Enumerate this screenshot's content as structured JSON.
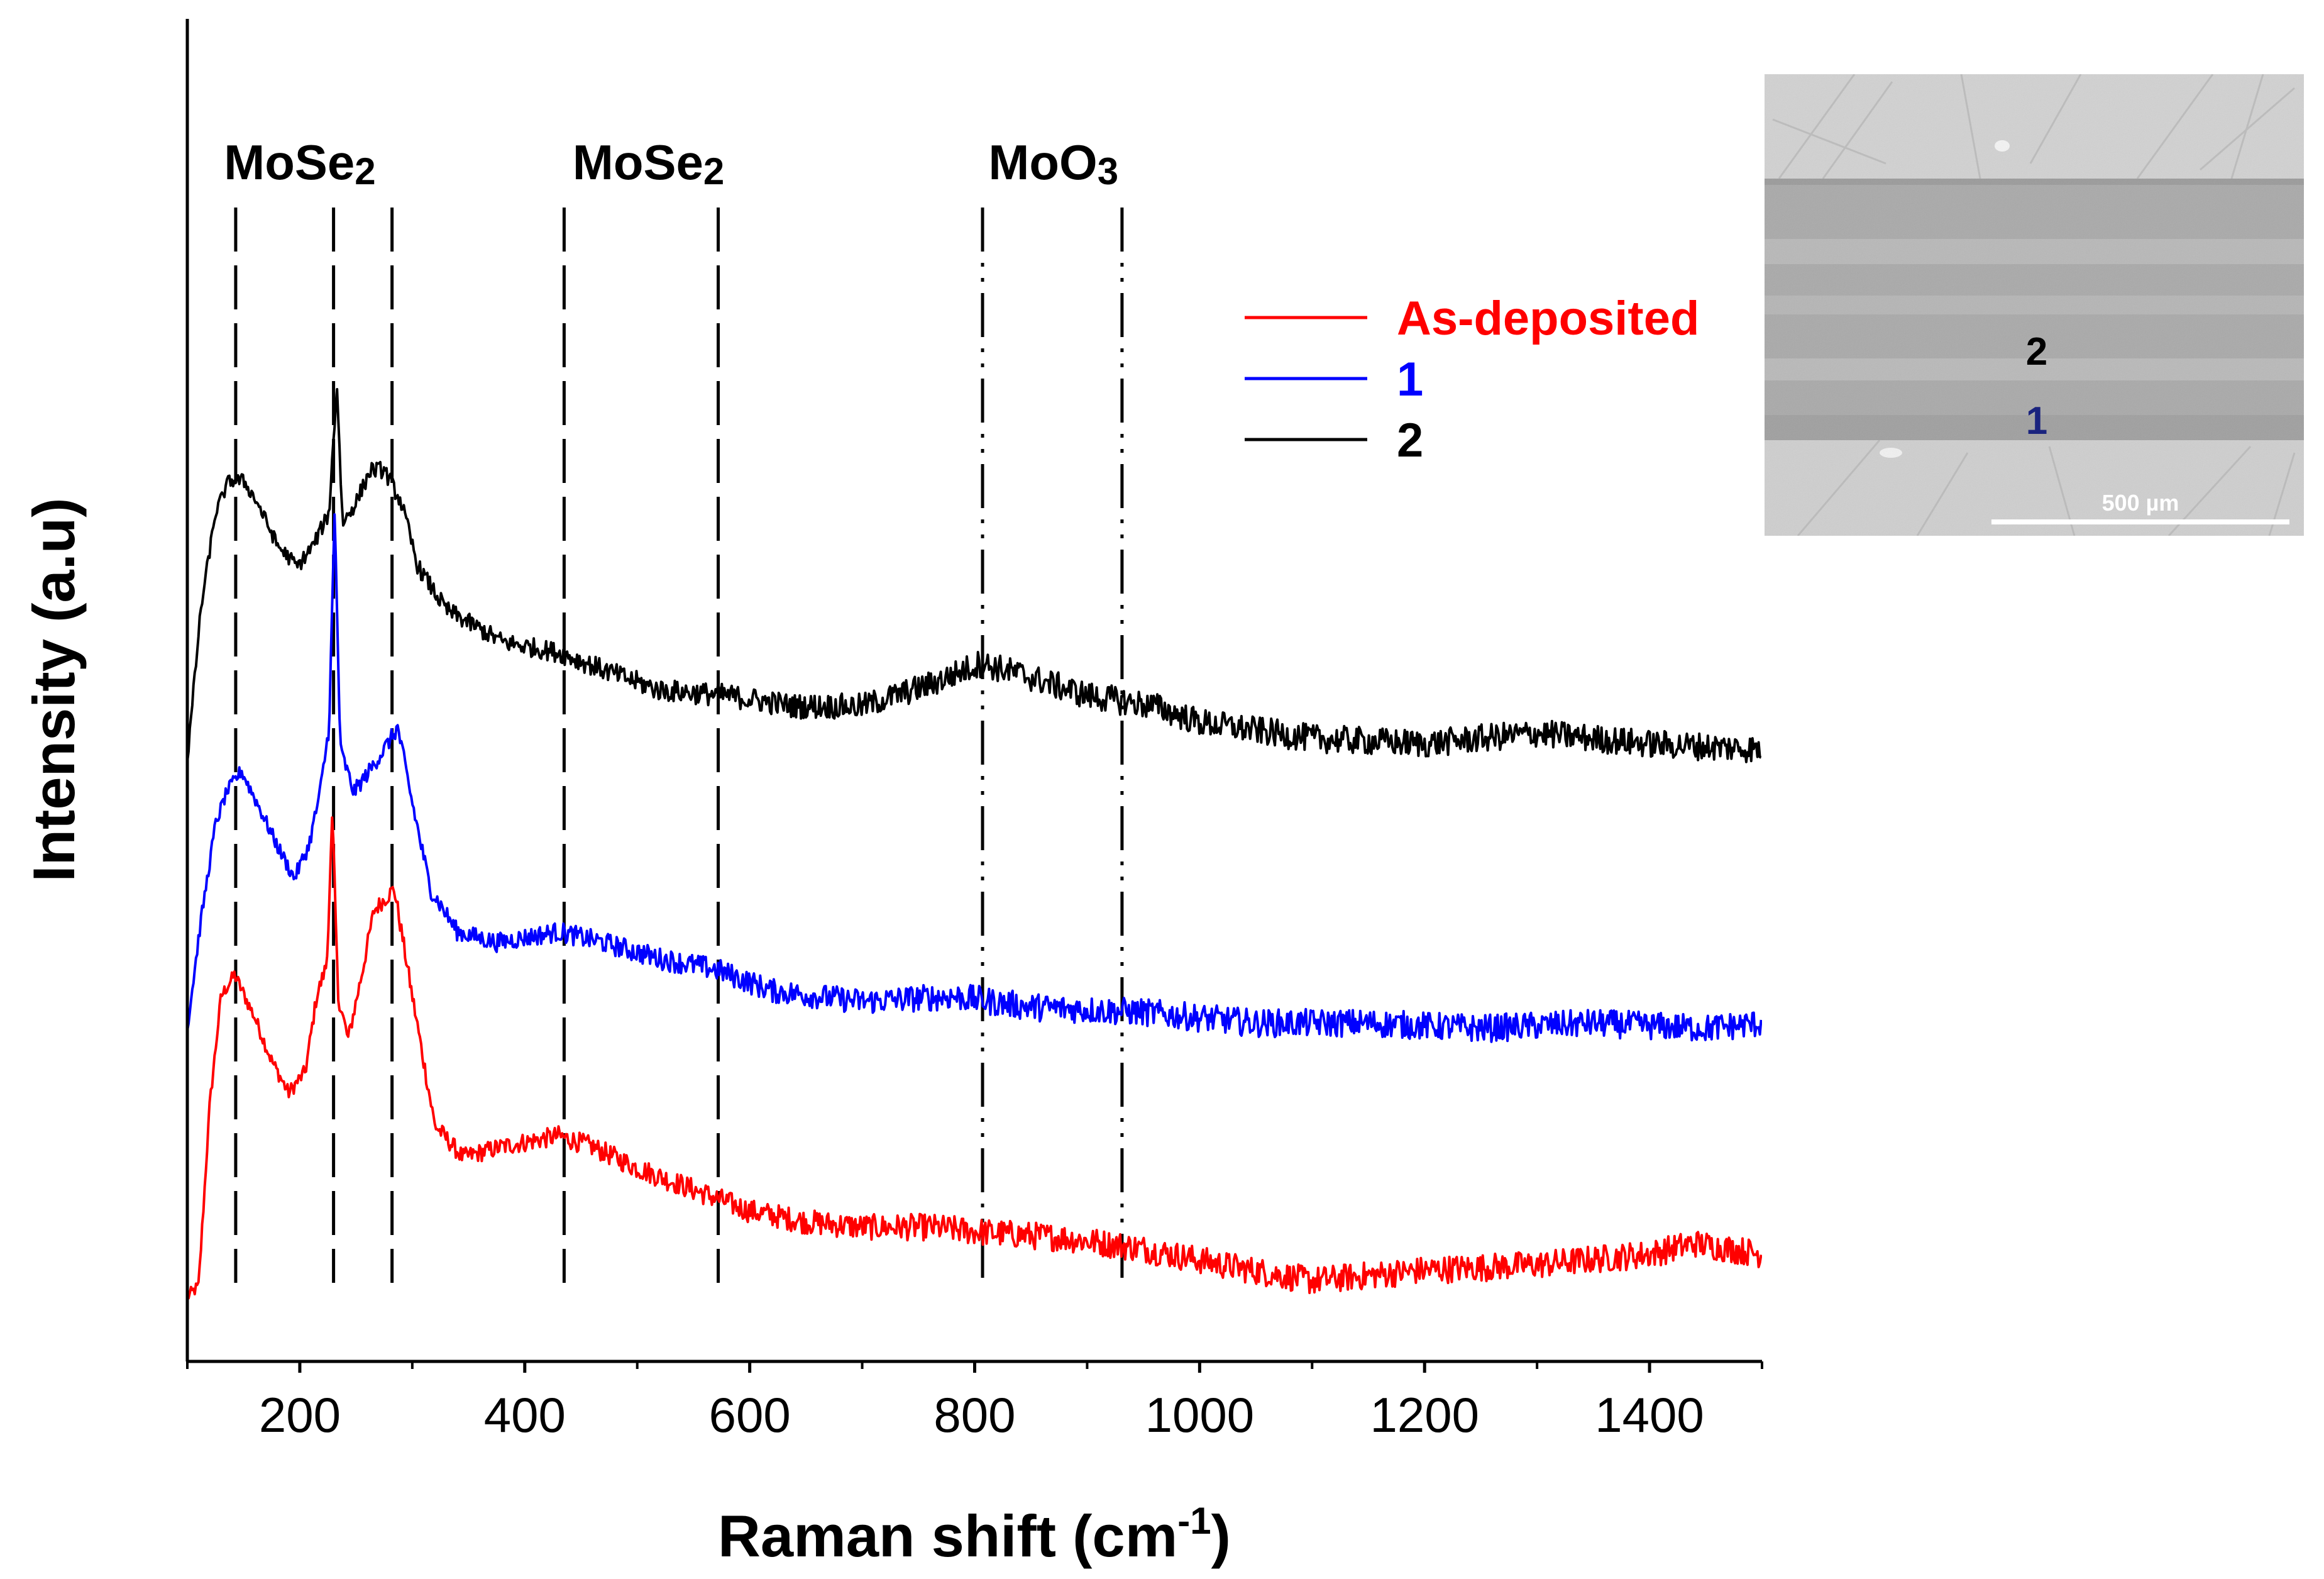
{
  "chart_data": {
    "type": "line",
    "title": "",
    "xlabel": "Raman shift (cm",
    "xlabel_sup": "-1",
    "xlabel_end": ")",
    "ylabel": "Intensity (a.u)",
    "xlim": [
      100,
      1500
    ],
    "ylim": [
      0,
      1.25
    ],
    "x_ticks": [
      200,
      400,
      600,
      800,
      1000,
      1200,
      1400
    ],
    "x_tick_labels": [
      "200",
      "400",
      "600",
      "800",
      "1000",
      "1200",
      "1400"
    ],
    "y_ticks_shown": false,
    "series": [
      {
        "name": "As-deposited",
        "color": "#ff0000",
        "offset": 0.06,
        "points": [
          [
            100,
            0.0
          ],
          [
            110,
            0.01
          ],
          [
            120,
            0.18
          ],
          [
            130,
            0.28
          ],
          [
            142,
            0.3
          ],
          [
            160,
            0.26
          ],
          [
            175,
            0.22
          ],
          [
            190,
            0.19
          ],
          [
            205,
            0.21
          ],
          [
            215,
            0.28
          ],
          [
            224,
            0.31
          ],
          [
            229,
            0.45
          ],
          [
            234,
            0.28
          ],
          [
            243,
            0.24
          ],
          [
            255,
            0.3
          ],
          [
            266,
            0.36
          ],
          [
            284,
            0.38
          ],
          [
            300,
            0.28
          ],
          [
            320,
            0.16
          ],
          [
            345,
            0.13
          ],
          [
            380,
            0.14
          ],
          [
            430,
            0.15
          ],
          [
            460,
            0.14
          ],
          [
            500,
            0.12
          ],
          [
            550,
            0.1
          ],
          [
            600,
            0.08
          ],
          [
            650,
            0.07
          ],
          [
            700,
            0.065
          ],
          [
            760,
            0.065
          ],
          [
            810,
            0.06
          ],
          [
            880,
            0.055
          ],
          [
            950,
            0.045
          ],
          [
            1020,
            0.03
          ],
          [
            1100,
            0.015
          ],
          [
            1200,
            0.025
          ],
          [
            1300,
            0.03
          ],
          [
            1400,
            0.04
          ],
          [
            1440,
            0.05
          ],
          [
            1500,
            0.04
          ]
        ]
      },
      {
        "name": "1",
        "color": "#0000ff",
        "offset": 0.31,
        "points": [
          [
            100,
            0.0
          ],
          [
            112,
            0.1
          ],
          [
            125,
            0.19
          ],
          [
            135,
            0.22
          ],
          [
            148,
            0.24
          ],
          [
            162,
            0.21
          ],
          [
            180,
            0.17
          ],
          [
            195,
            0.14
          ],
          [
            208,
            0.17
          ],
          [
            218,
            0.22
          ],
          [
            226,
            0.28
          ],
          [
            231,
            0.48
          ],
          [
            236,
            0.26
          ],
          [
            248,
            0.22
          ],
          [
            262,
            0.24
          ],
          [
            275,
            0.26
          ],
          [
            287,
            0.28
          ],
          [
            300,
            0.21
          ],
          [
            316,
            0.13
          ],
          [
            340,
            0.09
          ],
          [
            375,
            0.08
          ],
          [
            430,
            0.09
          ],
          [
            470,
            0.08
          ],
          [
            520,
            0.065
          ],
          [
            570,
            0.055
          ],
          [
            620,
            0.035
          ],
          [
            700,
            0.025
          ],
          [
            780,
            0.03
          ],
          [
            850,
            0.02
          ],
          [
            950,
            0.015
          ],
          [
            1050,
            0.005
          ],
          [
            1150,
            0.005
          ],
          [
            1250,
            0.0
          ],
          [
            1350,
            0.005
          ],
          [
            1450,
            0.0
          ],
          [
            1500,
            0.005
          ]
        ]
      },
      {
        "name": "2",
        "color": "#000000",
        "offset": 0.56,
        "points": [
          [
            100,
            0.0
          ],
          [
            112,
            0.14
          ],
          [
            125,
            0.23
          ],
          [
            137,
            0.26
          ],
          [
            150,
            0.26
          ],
          [
            162,
            0.24
          ],
          [
            180,
            0.2
          ],
          [
            198,
            0.18
          ],
          [
            212,
            0.2
          ],
          [
            226,
            0.23
          ],
          [
            233,
            0.35
          ],
          [
            238,
            0.22
          ],
          [
            250,
            0.24
          ],
          [
            263,
            0.27
          ],
          [
            275,
            0.27
          ],
          [
            290,
            0.24
          ],
          [
            305,
            0.18
          ],
          [
            330,
            0.14
          ],
          [
            380,
            0.11
          ],
          [
            430,
            0.1
          ],
          [
            480,
            0.08
          ],
          [
            520,
            0.065
          ],
          [
            580,
            0.06
          ],
          [
            640,
            0.05
          ],
          [
            700,
            0.05
          ],
          [
            760,
            0.07
          ],
          [
            805,
            0.09
          ],
          [
            840,
            0.08
          ],
          [
            900,
            0.06
          ],
          [
            960,
            0.05
          ],
          [
            1000,
            0.035
          ],
          [
            1100,
            0.02
          ],
          [
            1200,
            0.015
          ],
          [
            1300,
            0.025
          ],
          [
            1400,
            0.015
          ],
          [
            1500,
            0.01
          ]
        ]
      }
    ],
    "reference_lines": [
      {
        "group": "MoSe2",
        "x": 143,
        "style": "dashed"
      },
      {
        "group": "MoSe2",
        "x": 230,
        "style": "dashed"
      },
      {
        "group": "MoSe2",
        "x": 282,
        "style": "dashed"
      },
      {
        "group": "MoSe2",
        "x": 435,
        "style": "dashed"
      },
      {
        "group": "MoSe2",
        "x": 572,
        "style": "dashed"
      },
      {
        "group": "MoO3",
        "x": 807,
        "style": "dashdotdot"
      },
      {
        "group": "MoO3",
        "x": 931,
        "style": "dashdotdot"
      }
    ],
    "annotations": [
      {
        "text": "MoSe",
        "sub": "2",
        "x": 200
      },
      {
        "text": "MoSe",
        "sub": "2",
        "x": 510
      },
      {
        "text": "MoO",
        "sub": "3",
        "x": 870
      }
    ],
    "legend": {
      "placement": "upper-middle",
      "entries": [
        {
          "label": "As-deposited",
          "color": "#ff0000"
        },
        {
          "label": "1",
          "color": "#0000ff"
        },
        {
          "label": "2",
          "color": "#000000"
        }
      ]
    }
  },
  "inset": {
    "description_labels": [
      "2",
      "1"
    ],
    "label_colors": [
      "#000000",
      "#1a237e"
    ],
    "scale_bar": "500 µm"
  }
}
